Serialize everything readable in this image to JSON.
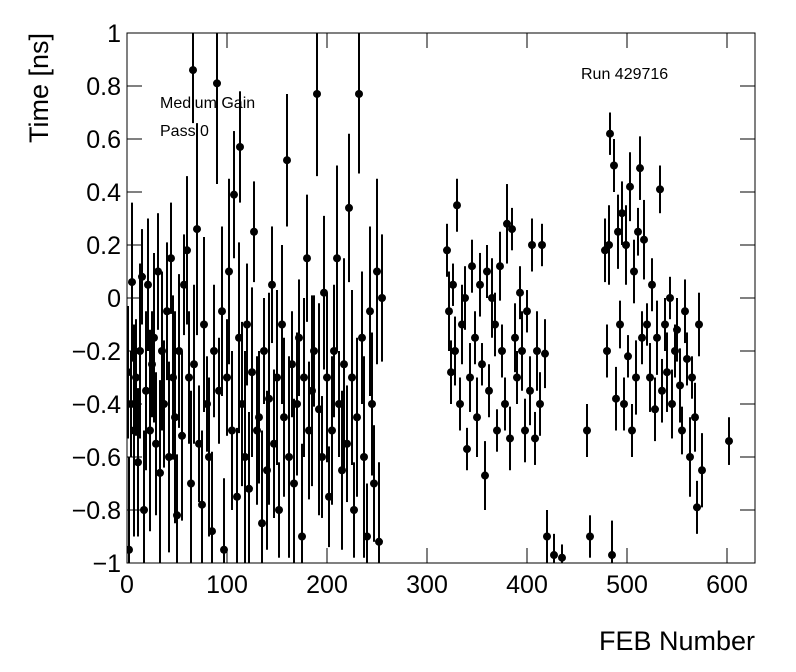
{
  "chart_data": {
    "type": "scatter",
    "x_label": "FEB Number",
    "y_label": "Time [ns]",
    "annotations": [
      "Medium Gain",
      "Pass 0",
      "Run 429716"
    ],
    "color": "#000000",
    "xlim": [
      0,
      628
    ],
    "ylim": [
      -1,
      1
    ],
    "xticks": [
      0,
      100,
      200,
      300,
      400,
      500,
      600
    ],
    "yticks": [
      {
        "value": -1,
        "label": "−1"
      },
      {
        "value": -0.8,
        "label": "−0.8"
      },
      {
        "value": -0.6,
        "label": "−0.6"
      },
      {
        "value": -0.4,
        "label": "−0.4"
      },
      {
        "value": -0.2,
        "label": "−0.2"
      },
      0,
      0.2,
      0.4,
      0.6,
      0.8,
      1
    ],
    "x": [
      1,
      2,
      4,
      5,
      7,
      9,
      11,
      13,
      15,
      17,
      19,
      21,
      23,
      25,
      27,
      29,
      31,
      33,
      35,
      37,
      40,
      42,
      44,
      46,
      48,
      50,
      52,
      55,
      57,
      60,
      62,
      64,
      66,
      67,
      70,
      72,
      75,
      77,
      80,
      82,
      85,
      87,
      90,
      92,
      95,
      97,
      100,
      102,
      105,
      107,
      110,
      112,
      113,
      115,
      118,
      120,
      122,
      125,
      127,
      130,
      132,
      135,
      137,
      140,
      142,
      145,
      147,
      150,
      152,
      155,
      157,
      160,
      162,
      165,
      167,
      170,
      172,
      175,
      177,
      180,
      182,
      185,
      187,
      190,
      192,
      195,
      197,
      200,
      202,
      205,
      207,
      210,
      212,
      215,
      217,
      220,
      222,
      225,
      227,
      230,
      232,
      235,
      237,
      240,
      243,
      245,
      247,
      250,
      252,
      255,
      320,
      322,
      324,
      326,
      328,
      330,
      333,
      335,
      338,
      340,
      343,
      345,
      348,
      350,
      353,
      355,
      358,
      360,
      362,
      365,
      368,
      370,
      373,
      375,
      378,
      380,
      383,
      385,
      388,
      390,
      393,
      395,
      398,
      400,
      403,
      405,
      408,
      410,
      413,
      415,
      418,
      420,
      427,
      435,
      460,
      463,
      478,
      480,
      482,
      483,
      485,
      487,
      489,
      491,
      493,
      495,
      497,
      499,
      501,
      503,
      505,
      507,
      509,
      511,
      513,
      515,
      517,
      520,
      523,
      525,
      528,
      530,
      533,
      535,
      538,
      540,
      543,
      545,
      548,
      550,
      553,
      555,
      558,
      560,
      563,
      565,
      568,
      570,
      572,
      575,
      602
    ],
    "values": [
      -0.28,
      -0.95,
      -0.4,
      0.06,
      -0.5,
      -0.3,
      -0.62,
      -0.2,
      0.08,
      -0.8,
      -0.35,
      0.05,
      -0.5,
      -0.25,
      -0.15,
      -0.55,
      0.1,
      -0.66,
      -0.2,
      -0.4,
      -0.05,
      -0.6,
      0.15,
      -0.3,
      -0.45,
      -0.82,
      -0.2,
      -0.52,
      0.05,
      0.18,
      -0.3,
      -0.7,
      0.86,
      -0.25,
      0.26,
      -0.55,
      -0.78,
      -0.1,
      -0.4,
      -0.6,
      -0.88,
      -0.2,
      0.81,
      -0.35,
      -0.05,
      -0.95,
      -0.3,
      0.1,
      -0.5,
      0.39,
      -0.75,
      -0.15,
      0.57,
      -0.4,
      -0.6,
      -0.1,
      -0.72,
      -0.28,
      0.25,
      -0.5,
      -0.45,
      -0.85,
      -0.2,
      -0.65,
      -0.38,
      0.05,
      -0.55,
      -0.3,
      -0.8,
      -0.1,
      -0.45,
      0.52,
      -0.6,
      -0.25,
      -0.7,
      -0.4,
      -0.15,
      -0.9,
      -0.3,
      0.15,
      -0.5,
      -0.35,
      -0.2,
      0.77,
      -0.42,
      -0.6,
      0.02,
      -0.3,
      -0.75,
      -0.5,
      -0.2,
      0.15,
      -0.4,
      -0.65,
      -0.25,
      -0.55,
      0.34,
      -0.3,
      -0.8,
      -0.45,
      0.77,
      -0.15,
      -0.6,
      -0.9,
      -0.05,
      -0.4,
      -0.7,
      0.1,
      -0.92,
      0.0,
      0.18,
      -0.05,
      -0.28,
      0.05,
      -0.2,
      0.35,
      -0.4,
      -0.1,
      0.0,
      -0.57,
      -0.3,
      0.12,
      -0.15,
      -0.45,
      0.05,
      -0.25,
      -0.67,
      0.1,
      -0.35,
      0.0,
      -0.1,
      -0.5,
      0.12,
      -0.2,
      -0.4,
      0.28,
      -0.53,
      0.26,
      -0.15,
      -0.3,
      0.02,
      -0.2,
      -0.5,
      -0.05,
      -0.35,
      0.2,
      -0.53,
      -0.2,
      -0.4,
      0.2,
      -0.21,
      -0.9,
      -0.97,
      -0.98,
      -0.5,
      -0.9,
      0.18,
      -0.2,
      0.2,
      0.62,
      -0.97,
      0.5,
      -0.38,
      0.25,
      -0.1,
      0.32,
      -0.4,
      0.2,
      -0.22,
      0.42,
      -0.5,
      0.1,
      -0.3,
      0.25,
      0.49,
      -0.15,
      0.22,
      -0.1,
      -0.3,
      0.05,
      -0.42,
      -0.15,
      0.41,
      -0.35,
      -0.1,
      -0.28,
      0.0,
      -0.4,
      -0.2,
      -0.12,
      -0.33,
      -0.5,
      -0.05,
      -0.23,
      -0.6,
      -0.3,
      -0.45,
      -0.79,
      -0.1,
      -0.65,
      -0.54
    ],
    "errors": [
      0.25,
      0.35,
      0.2,
      0.3,
      0.4,
      0.22,
      0.28,
      0.33,
      0.18,
      0.3,
      0.3,
      0.25,
      0.38,
      0.2,
      0.32,
      0.27,
      0.22,
      0.35,
      0.3,
      0.24,
      0.26,
      0.36,
      0.21,
      0.31,
      0.4,
      0.23,
      0.29,
      0.32,
      0.19,
      0.28,
      0.25,
      0.35,
      0.2,
      0.3,
      0.4,
      0.22,
      0.28,
      0.33,
      0.18,
      0.3,
      0.3,
      0.25,
      0.38,
      0.2,
      0.32,
      0.27,
      0.22,
      0.35,
      0.3,
      0.24,
      0.26,
      0.36,
      0.21,
      0.31,
      0.4,
      0.23,
      0.29,
      0.32,
      0.19,
      0.28,
      0.25,
      0.35,
      0.2,
      0.3,
      0.4,
      0.22,
      0.28,
      0.33,
      0.18,
      0.3,
      0.3,
      0.25,
      0.38,
      0.2,
      0.32,
      0.27,
      0.22,
      0.35,
      0.3,
      0.24,
      0.26,
      0.36,
      0.21,
      0.31,
      0.4,
      0.23,
      0.29,
      0.32,
      0.19,
      0.28,
      0.25,
      0.35,
      0.2,
      0.3,
      0.4,
      0.22,
      0.28,
      0.33,
      0.18,
      0.3,
      0.3,
      0.25,
      0.38,
      0.2,
      0.32,
      0.27,
      0.22,
      0.35,
      0.3,
      0.24,
      0.1,
      0.15,
      0.12,
      0.08,
      0.13,
      0.1,
      0.1,
      0.15,
      0.12,
      0.08,
      0.13,
      0.1,
      0.1,
      0.15,
      0.12,
      0.08,
      0.13,
      0.1,
      0.1,
      0.15,
      0.12,
      0.08,
      0.13,
      0.1,
      0.1,
      0.15,
      0.12,
      0.08,
      0.13,
      0.1,
      0.1,
      0.15,
      0.12,
      0.08,
      0.13,
      0.1,
      0.1,
      0.15,
      0.12,
      0.08,
      0.13,
      0.1,
      0.08,
      0.05,
      0.1,
      0.08,
      0.12,
      0.1,
      0.15,
      0.08,
      0.13,
      0.1,
      0.12,
      0.14,
      0.09,
      0.12,
      0.1,
      0.15,
      0.08,
      0.13,
      0.1,
      0.12,
      0.14,
      0.09,
      0.12,
      0.1,
      0.15,
      0.08,
      0.13,
      0.1,
      0.12,
      0.14,
      0.09,
      0.12,
      0.1,
      0.15,
      0.08,
      0.13,
      0.1,
      0.12,
      0.14,
      0.09,
      0.12,
      0.1,
      0.15,
      0.08,
      0.13,
      0.1,
      0.12,
      0.14,
      0.09
    ]
  }
}
